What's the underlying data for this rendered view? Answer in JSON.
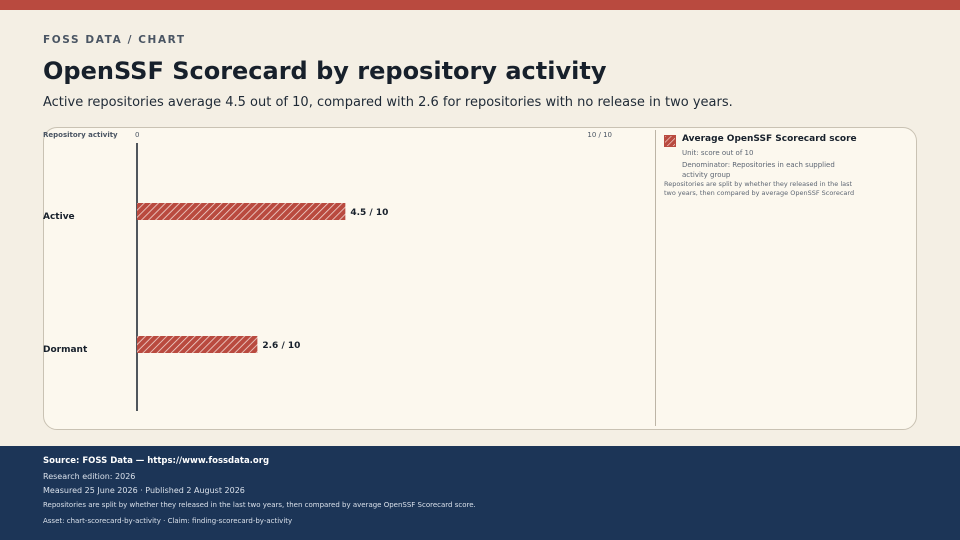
{
  "header": {
    "eyebrow": "FOSS DATA / CHART",
    "title": "OpenSSF Scorecard by repository activity",
    "subtitle": "Active repositories average 4.5 out of 10, compared with 2.6 for repositories with no release in two years."
  },
  "colors": {
    "accent": "#b94a3f",
    "footer_bg": "#1c3557",
    "background": "#f4efe4",
    "panel": "#fcf8ee"
  },
  "chart_data": {
    "type": "bar",
    "orientation": "horizontal",
    "axis_label": "Repository activity",
    "x_min_label": "0",
    "x_max_label": "10 / 10",
    "xlim": [
      0,
      10
    ],
    "categories": [
      "Active",
      "Dormant"
    ],
    "series": [
      {
        "name": "Average OpenSSF Scorecard score",
        "values": [
          4.5,
          2.6
        ],
        "value_labels": [
          "4.5 / 10",
          "2.6 / 10"
        ]
      }
    ],
    "fill": "hatched"
  },
  "legend": {
    "title": "Average OpenSSF Scorecard score",
    "unit": "Unit: score out of 10",
    "denominator": "Denominator: Repositories in each supplied activity group",
    "note": "Repositories are split by whether they released in the last two years, then compared by average OpenSSF Scorecard"
  },
  "footer": {
    "source": "Source: FOSS Data — https://www.fossdata.org",
    "edition": "Research edition: 2026",
    "dates": "Measured 25 June 2026 · Published 2 August 2026",
    "method": "Repositories are split by whether they released in the last two years, then compared by average OpenSSF Scorecard score.",
    "asset": "Asset: chart-scorecard-by-activity · Claim: finding-scorecard-by-activity"
  }
}
